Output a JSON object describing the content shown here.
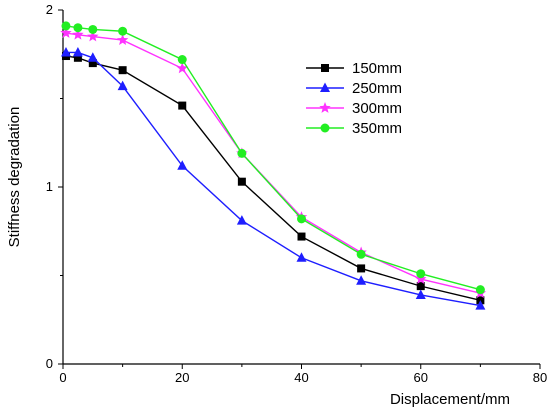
{
  "chart_data": {
    "type": "line",
    "xlabel": "Displacement/mm",
    "ylabel": "Stiffness degradation",
    "xlim": [
      0,
      80
    ],
    "ylim": [
      0,
      2
    ],
    "xticks": [
      0,
      20,
      40,
      60,
      80
    ],
    "yticks": [
      0,
      1,
      2
    ],
    "grid": false,
    "legend_position": "top-right",
    "series": [
      {
        "name": "150mm",
        "color": "#000000",
        "marker": "square",
        "x": [
          0.5,
          2.5,
          5,
          10,
          20,
          30,
          40,
          50,
          60,
          70
        ],
        "y": [
          1.74,
          1.73,
          1.7,
          1.66,
          1.46,
          1.03,
          0.72,
          0.54,
          0.44,
          0.36
        ]
      },
      {
        "name": "250mm",
        "color": "#1e1eff",
        "marker": "triangle",
        "x": [
          0.5,
          2.5,
          5,
          10,
          20,
          30,
          40,
          50,
          60,
          70
        ],
        "y": [
          1.76,
          1.76,
          1.73,
          1.57,
          1.12,
          0.81,
          0.6,
          0.47,
          0.39,
          0.33
        ]
      },
      {
        "name": "300mm",
        "color": "#ff33ff",
        "marker": "star",
        "x": [
          0.5,
          2.5,
          5,
          10,
          20,
          30,
          40,
          50,
          60,
          70
        ],
        "y": [
          1.87,
          1.86,
          1.85,
          1.83,
          1.67,
          1.19,
          0.83,
          0.63,
          0.48,
          0.4
        ]
      },
      {
        "name": "350mm",
        "color": "#22ee22",
        "marker": "circle",
        "x": [
          0.5,
          2.5,
          5,
          10,
          20,
          30,
          40,
          50,
          60,
          70
        ],
        "y": [
          1.91,
          1.9,
          1.89,
          1.88,
          1.72,
          1.19,
          0.82,
          0.62,
          0.51,
          0.42
        ]
      }
    ]
  }
}
